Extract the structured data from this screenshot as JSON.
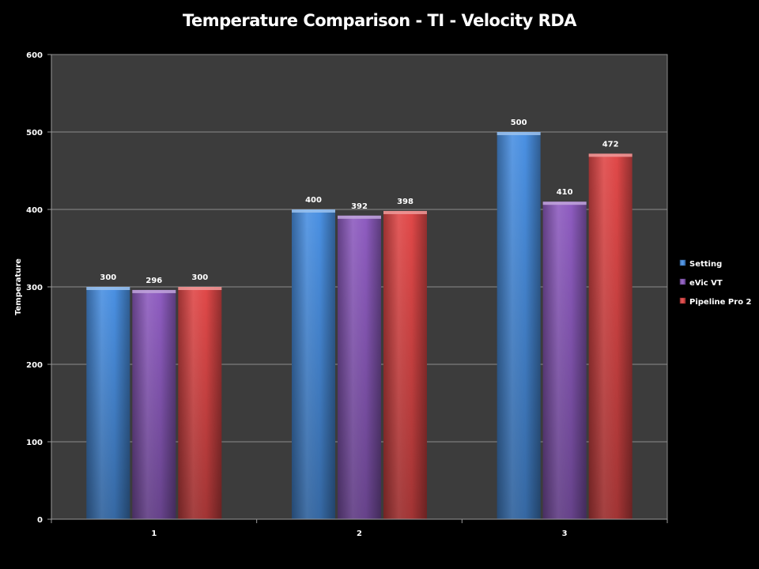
{
  "chart_data": {
    "type": "bar",
    "title": "Temperature Comparison - TI - Velocity RDA",
    "xlabel": "",
    "ylabel": "Temperature",
    "categories": [
      "1",
      "2",
      "3"
    ],
    "series": [
      {
        "name": "Setting",
        "values": [
          300,
          400,
          500
        ],
        "color": "#4a90e2"
      },
      {
        "name": "eVic VT",
        "values": [
          296,
          392,
          410
        ],
        "color": "#8e5cc0"
      },
      {
        "name": "Pipeline Pro 2",
        "values": [
          300,
          398,
          472
        ],
        "color": "#e04848"
      }
    ],
    "ylim": [
      0,
      600
    ],
    "yticks": [
      "0",
      "100",
      "200",
      "300",
      "400",
      "500",
      "600"
    ],
    "grid": true,
    "legend_position": "right",
    "plot_background": "#3c3c3c",
    "background": "#000000"
  }
}
